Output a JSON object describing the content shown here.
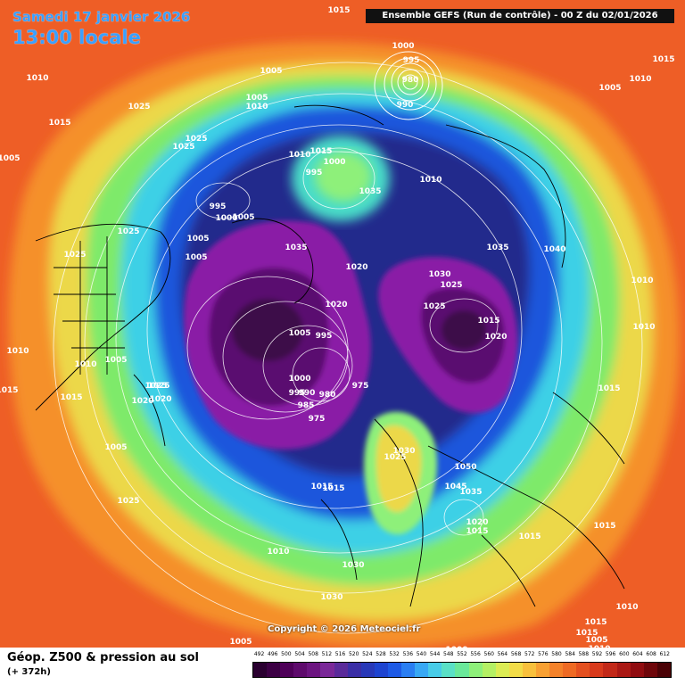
{
  "header": {
    "date": "Samedi 17 janvier 2026",
    "time": "13:00 locale",
    "run": "Ensemble GEFS  (Run de contrôle)  -  00 Z du 02/01/2026"
  },
  "copyright": "Copyright © 2026 Meteociel.fr",
  "footer": {
    "title": "Géop. Z500 & pression au sol",
    "subtitle": "(+ 372h)"
  },
  "legend": {
    "values": [
      "492",
      "496",
      "500",
      "504",
      "508",
      "512",
      "516",
      "520",
      "524",
      "528",
      "532",
      "536",
      "540",
      "544",
      "548",
      "552",
      "556",
      "560",
      "564",
      "568",
      "572",
      "576",
      "580",
      "584",
      "588",
      "592",
      "596",
      "600",
      "604",
      "608",
      "612"
    ],
    "colors": [
      "#2a0030",
      "#3c0044",
      "#4e0058",
      "#5e0a6c",
      "#6c1480",
      "#7a2898",
      "#5a2a9a",
      "#3a2ea6",
      "#2838b8",
      "#1e44d0",
      "#1e5ae6",
      "#2a7ef2",
      "#38a8f4",
      "#48cce8",
      "#5ae0c6",
      "#6ae89a",
      "#8ef07a",
      "#b4f064",
      "#dcec54",
      "#f2dc48",
      "#f8c03c",
      "#f8a032",
      "#f4822a",
      "#ee6a24",
      "#e45020",
      "#d83a1c",
      "#c22818",
      "#aa1814",
      "#900c10",
      "#6e060a",
      "#4a0206"
    ]
  },
  "map": {
    "colors": {
      "warm_outer": "#f06428",
      "orange": "#f5902c",
      "yellow": "#ecd848",
      "green": "#7eea6a",
      "cyan": "#3ed0e6",
      "blue": "#1e56dc",
      "navy": "#242a8c",
      "purple": "#8a1aa6",
      "deep_purple": "#3c0a4a"
    },
    "isobar_labels": [
      "1005",
      "1010",
      "1015",
      "1020",
      "1025",
      "1030",
      "1035",
      "1040",
      "1045",
      "1050",
      "1000",
      "995",
      "990",
      "985",
      "980",
      "975"
    ],
    "placed": [
      {
        "t": "1015",
        "k": "iso"
      },
      {
        "t": "1000",
        "k": "iso"
      },
      {
        "t": "995",
        "k": "iso"
      },
      {
        "t": "980",
        "k": "iso"
      },
      {
        "t": "990",
        "k": "iso"
      },
      {
        "t": "1005",
        "k": "iso"
      },
      {
        "t": "1010",
        "k": "iso"
      },
      {
        "t": "1015",
        "k": "iso"
      },
      {
        "t": "1005",
        "k": "iso"
      },
      {
        "t": "1010",
        "k": "iso"
      },
      {
        "t": "1025",
        "k": "iso"
      },
      {
        "t": "1025",
        "k": "iso"
      },
      {
        "t": "1025",
        "k": "iso"
      },
      {
        "t": "1000",
        "k": "iso"
      },
      {
        "t": "995",
        "k": "iso"
      },
      {
        "t": "1010",
        "k": "iso"
      },
      {
        "t": "1015",
        "k": "iso"
      },
      {
        "t": "1005",
        "k": "iso"
      },
      {
        "t": "1020",
        "k": "iso"
      },
      {
        "t": "1035",
        "k": "iso"
      },
      {
        "t": "1010",
        "k": "iso"
      },
      {
        "t": "1000",
        "k": "iso"
      },
      {
        "t": "995",
        "k": "iso"
      },
      {
        "t": "1005",
        "k": "iso"
      },
      {
        "t": "1025",
        "k": "iso"
      },
      {
        "t": "1005",
        "k": "iso"
      },
      {
        "t": "1005",
        "k": "iso"
      },
      {
        "t": "1035",
        "k": "iso"
      },
      {
        "t": "1035",
        "k": "iso"
      },
      {
        "t": "1040",
        "k": "iso"
      },
      {
        "t": "1025",
        "k": "iso"
      },
      {
        "t": "1020",
        "k": "iso"
      },
      {
        "t": "1030",
        "k": "iso"
      },
      {
        "t": "1025",
        "k": "iso"
      },
      {
        "t": "1010",
        "k": "iso"
      },
      {
        "t": "1020",
        "k": "iso"
      },
      {
        "t": "1025",
        "k": "iso"
      },
      {
        "t": "1015",
        "k": "iso"
      },
      {
        "t": "1010",
        "k": "iso"
      },
      {
        "t": "1005",
        "k": "iso"
      },
      {
        "t": "995",
        "k": "iso"
      },
      {
        "t": "1020",
        "k": "iso"
      },
      {
        "t": "1015",
        "k": "iso"
      },
      {
        "t": "1010",
        "k": "iso"
      },
      {
        "t": "1005",
        "k": "iso"
      },
      {
        "t": "1000",
        "k": "iso"
      },
      {
        "t": "995",
        "k": "iso"
      },
      {
        "t": "990",
        "k": "iso"
      },
      {
        "t": "985",
        "k": "iso"
      },
      {
        "t": "980",
        "k": "iso"
      },
      {
        "t": "975",
        "k": "iso"
      },
      {
        "t": "975",
        "k": "iso"
      },
      {
        "t": "1015",
        "k": "iso"
      },
      {
        "t": "1020",
        "k": "iso"
      },
      {
        "t": "1025",
        "k": "iso"
      },
      {
        "t": "1025",
        "k": "iso"
      },
      {
        "t": "1030",
        "k": "iso"
      },
      {
        "t": "1025",
        "k": "iso"
      },
      {
        "t": "1050",
        "k": "iso"
      },
      {
        "t": "1015",
        "k": "iso"
      },
      {
        "t": "1015",
        "k": "iso"
      },
      {
        "t": "1045",
        "k": "iso"
      },
      {
        "t": "1035",
        "k": "iso"
      },
      {
        "t": "1020",
        "k": "iso"
      },
      {
        "t": "1015",
        "k": "iso"
      },
      {
        "t": "1015",
        "k": "iso"
      },
      {
        "t": "1010",
        "k": "iso"
      },
      {
        "t": "1015",
        "k": "iso"
      },
      {
        "t": "1030",
        "k": "iso"
      },
      {
        "t": "1030",
        "k": "iso"
      },
      {
        "t": "1025",
        "k": "iso"
      },
      {
        "t": "1010",
        "k": "iso"
      },
      {
        "t": "1015",
        "k": "iso"
      },
      {
        "t": "1015",
        "k": "iso"
      },
      {
        "t": "1010",
        "k": "iso"
      },
      {
        "t": "1005",
        "k": "iso"
      },
      {
        "t": "1000",
        "k": "iso"
      },
      {
        "t": "1005",
        "k": "iso"
      },
      {
        "t": "1010",
        "k": "iso"
      },
      {
        "t": "1015",
        "k": "iso"
      },
      {
        "t": "1005",
        "k": "iso"
      },
      {
        "t": "1005",
        "k": "iso"
      },
      {
        "t": "1010",
        "k": "iso"
      },
      {
        "t": "1015",
        "k": "iso"
      }
    ]
  }
}
